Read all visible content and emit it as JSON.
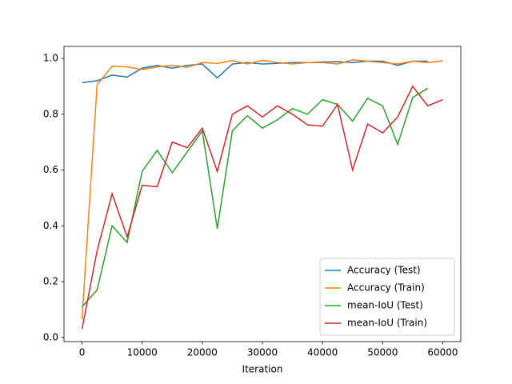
{
  "chart_data": {
    "type": "line",
    "xlabel": "Iteration",
    "x": [
      0,
      2500,
      5000,
      7500,
      10000,
      12500,
      15000,
      17500,
      20000,
      22500,
      25000,
      27500,
      30000,
      32500,
      35000,
      37500,
      40000,
      42500,
      45000,
      47500,
      50000,
      52500,
      55000,
      57500,
      60000
    ],
    "series": [
      {
        "name": "Accuracy (Test)",
        "color": "#1f77b4",
        "values": [
          0.913,
          0.92,
          0.94,
          0.933,
          0.965,
          0.975,
          0.965,
          0.975,
          0.98,
          0.93,
          0.98,
          0.985,
          0.98,
          0.982,
          0.985,
          0.985,
          0.987,
          0.988,
          0.985,
          0.99,
          0.99,
          0.975,
          0.99,
          0.99,
          null
        ]
      },
      {
        "name": "Accuracy (Train)",
        "color": "#ff7f0e",
        "values": [
          0.065,
          0.905,
          0.972,
          0.97,
          0.96,
          0.97,
          0.975,
          0.968,
          0.985,
          0.982,
          0.992,
          0.98,
          0.993,
          0.985,
          0.98,
          0.985,
          0.985,
          0.98,
          0.995,
          0.99,
          0.985,
          0.98,
          0.99,
          0.985,
          0.992
        ]
      },
      {
        "name": "mean-IoU (Test)",
        "color": "#2ca02c",
        "values": [
          0.11,
          0.17,
          0.4,
          0.34,
          0.595,
          0.67,
          0.59,
          0.665,
          0.74,
          0.39,
          0.74,
          0.795,
          0.75,
          0.78,
          0.82,
          0.8,
          0.852,
          0.835,
          0.775,
          0.857,
          0.83,
          0.692,
          0.86,
          0.893,
          null
        ]
      },
      {
        "name": "mean-IoU (Train)",
        "color": "#d62728",
        "values": [
          0.03,
          0.31,
          0.515,
          0.36,
          0.545,
          0.54,
          0.7,
          0.68,
          0.75,
          0.595,
          0.8,
          0.83,
          0.79,
          0.83,
          0.8,
          0.762,
          0.757,
          0.835,
          0.6,
          0.765,
          0.733,
          0.79,
          0.9,
          0.83,
          0.852
        ]
      }
    ],
    "xlim": [
      -3000,
      63000
    ],
    "xticks": [
      0,
      10000,
      20000,
      30000,
      40000,
      50000,
      60000
    ],
    "ylim": [
      -0.015,
      1.043
    ],
    "yticks": [
      {
        "value": 0,
        "label": "0.0"
      },
      0.2,
      0.4,
      0.6,
      0.8,
      {
        "value": 1,
        "label": "1.0"
      }
    ],
    "grid": false,
    "legend": "lower right"
  }
}
